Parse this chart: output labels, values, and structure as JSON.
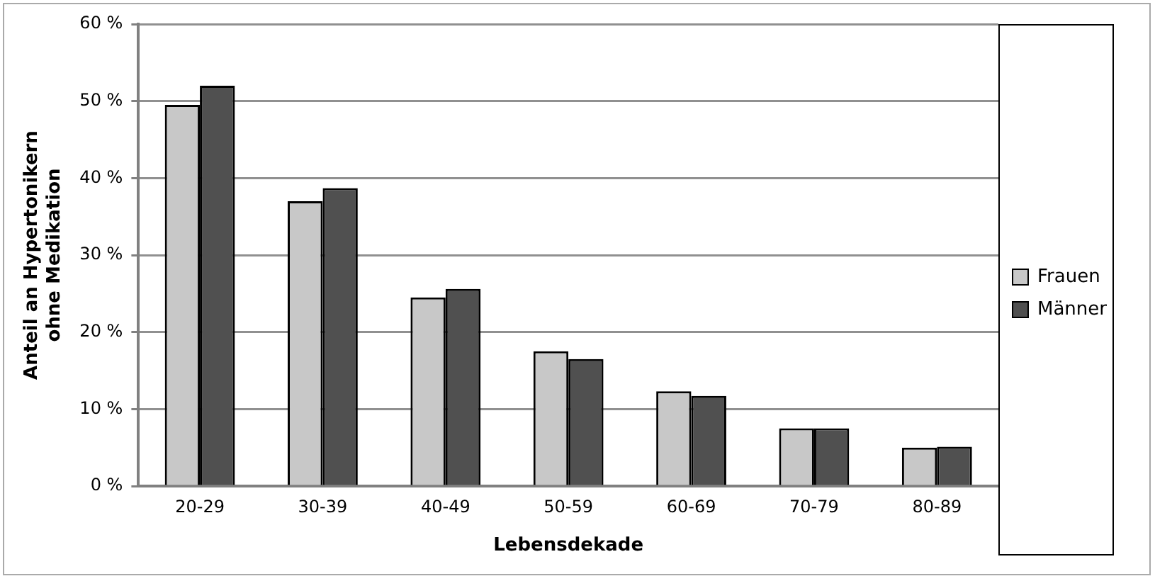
{
  "chart_data": {
    "type": "bar",
    "ylabel": "Anteil an Hypertonikern ohne Medikation",
    "xlabel": "Lebensdekade",
    "categories": [
      "20-29",
      "30-39",
      "40-49",
      "50-59",
      "60-69",
      "70-79",
      "80-89"
    ],
    "series": [
      {
        "name": "Frauen",
        "color": "#c8c8c8",
        "values": [
          49.5,
          37,
          24.5,
          17.5,
          12.3,
          7.5,
          5
        ]
      },
      {
        "name": "Männer",
        "color": "#505050",
        "values": [
          52,
          38.7,
          25.6,
          16.5,
          11.7,
          7.5,
          5.1
        ]
      }
    ],
    "ylim": [
      0,
      60
    ],
    "yticks": [
      {
        "value": 0,
        "label": "0 %"
      },
      {
        "value": 10,
        "label": "10 %"
      },
      {
        "value": 20,
        "label": "20 %"
      },
      {
        "value": 30,
        "label": "30 %"
      },
      {
        "value": 40,
        "label": "40 %"
      },
      {
        "value": 50,
        "label": "50 %"
      },
      {
        "value": 60,
        "label": "60 %"
      }
    ],
    "grid": "y",
    "legend": "right"
  }
}
